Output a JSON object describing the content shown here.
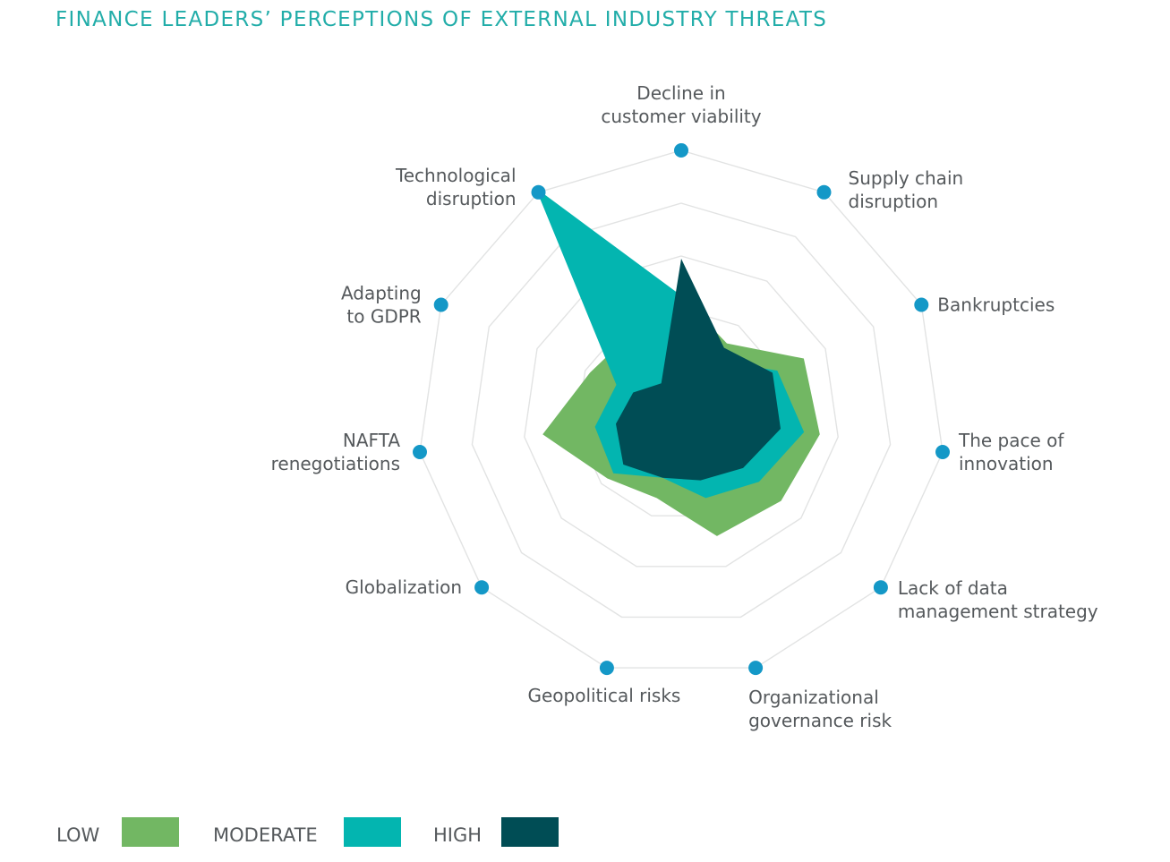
{
  "chart_data": {
    "type": "radar",
    "title": "FINANCE LEADERS’ PERCEPTIONS OF EXTERNAL INDUSTRY THREATS",
    "axes": [
      [
        "Decline in",
        "customer viability"
      ],
      [
        "Supply chain",
        "disruption"
      ],
      [
        "Bankruptcies"
      ],
      [
        "The pace of",
        "innovation"
      ],
      [
        "Lack of data",
        "management strategy"
      ],
      [
        "Organizational",
        "governance risk"
      ],
      [
        "Geopolitical risks"
      ],
      [
        "Globalization"
      ],
      [
        "NAFTA",
        "renegotiations"
      ],
      [
        "Adapting",
        "to GDPR"
      ],
      [
        "Technological",
        "disruption"
      ]
    ],
    "rmax": 1,
    "rings": 5,
    "grid": true,
    "legend_position": "bottom-left",
    "series": [
      {
        "name": "LOW",
        "color": "#72b763",
        "values": [
          0.45,
          0.32,
          0.51,
          0.53,
          0.5,
          0.48,
          0.33,
          0.37,
          0.53,
          0.38,
          0.36
        ]
      },
      {
        "name": "MODERATE",
        "color": "#03b5b0",
        "values": [
          0.45,
          0.24,
          0.4,
          0.47,
          0.39,
          0.33,
          0.25,
          0.34,
          0.33,
          0.27,
          1.02
        ]
      },
      {
        "name": "HIGH",
        "color": "#004d55",
        "values": [
          0.59,
          0.3,
          0.38,
          0.38,
          0.31,
          0.26,
          0.25,
          0.29,
          0.25,
          0.2,
          0.14
        ]
      }
    ]
  }
}
